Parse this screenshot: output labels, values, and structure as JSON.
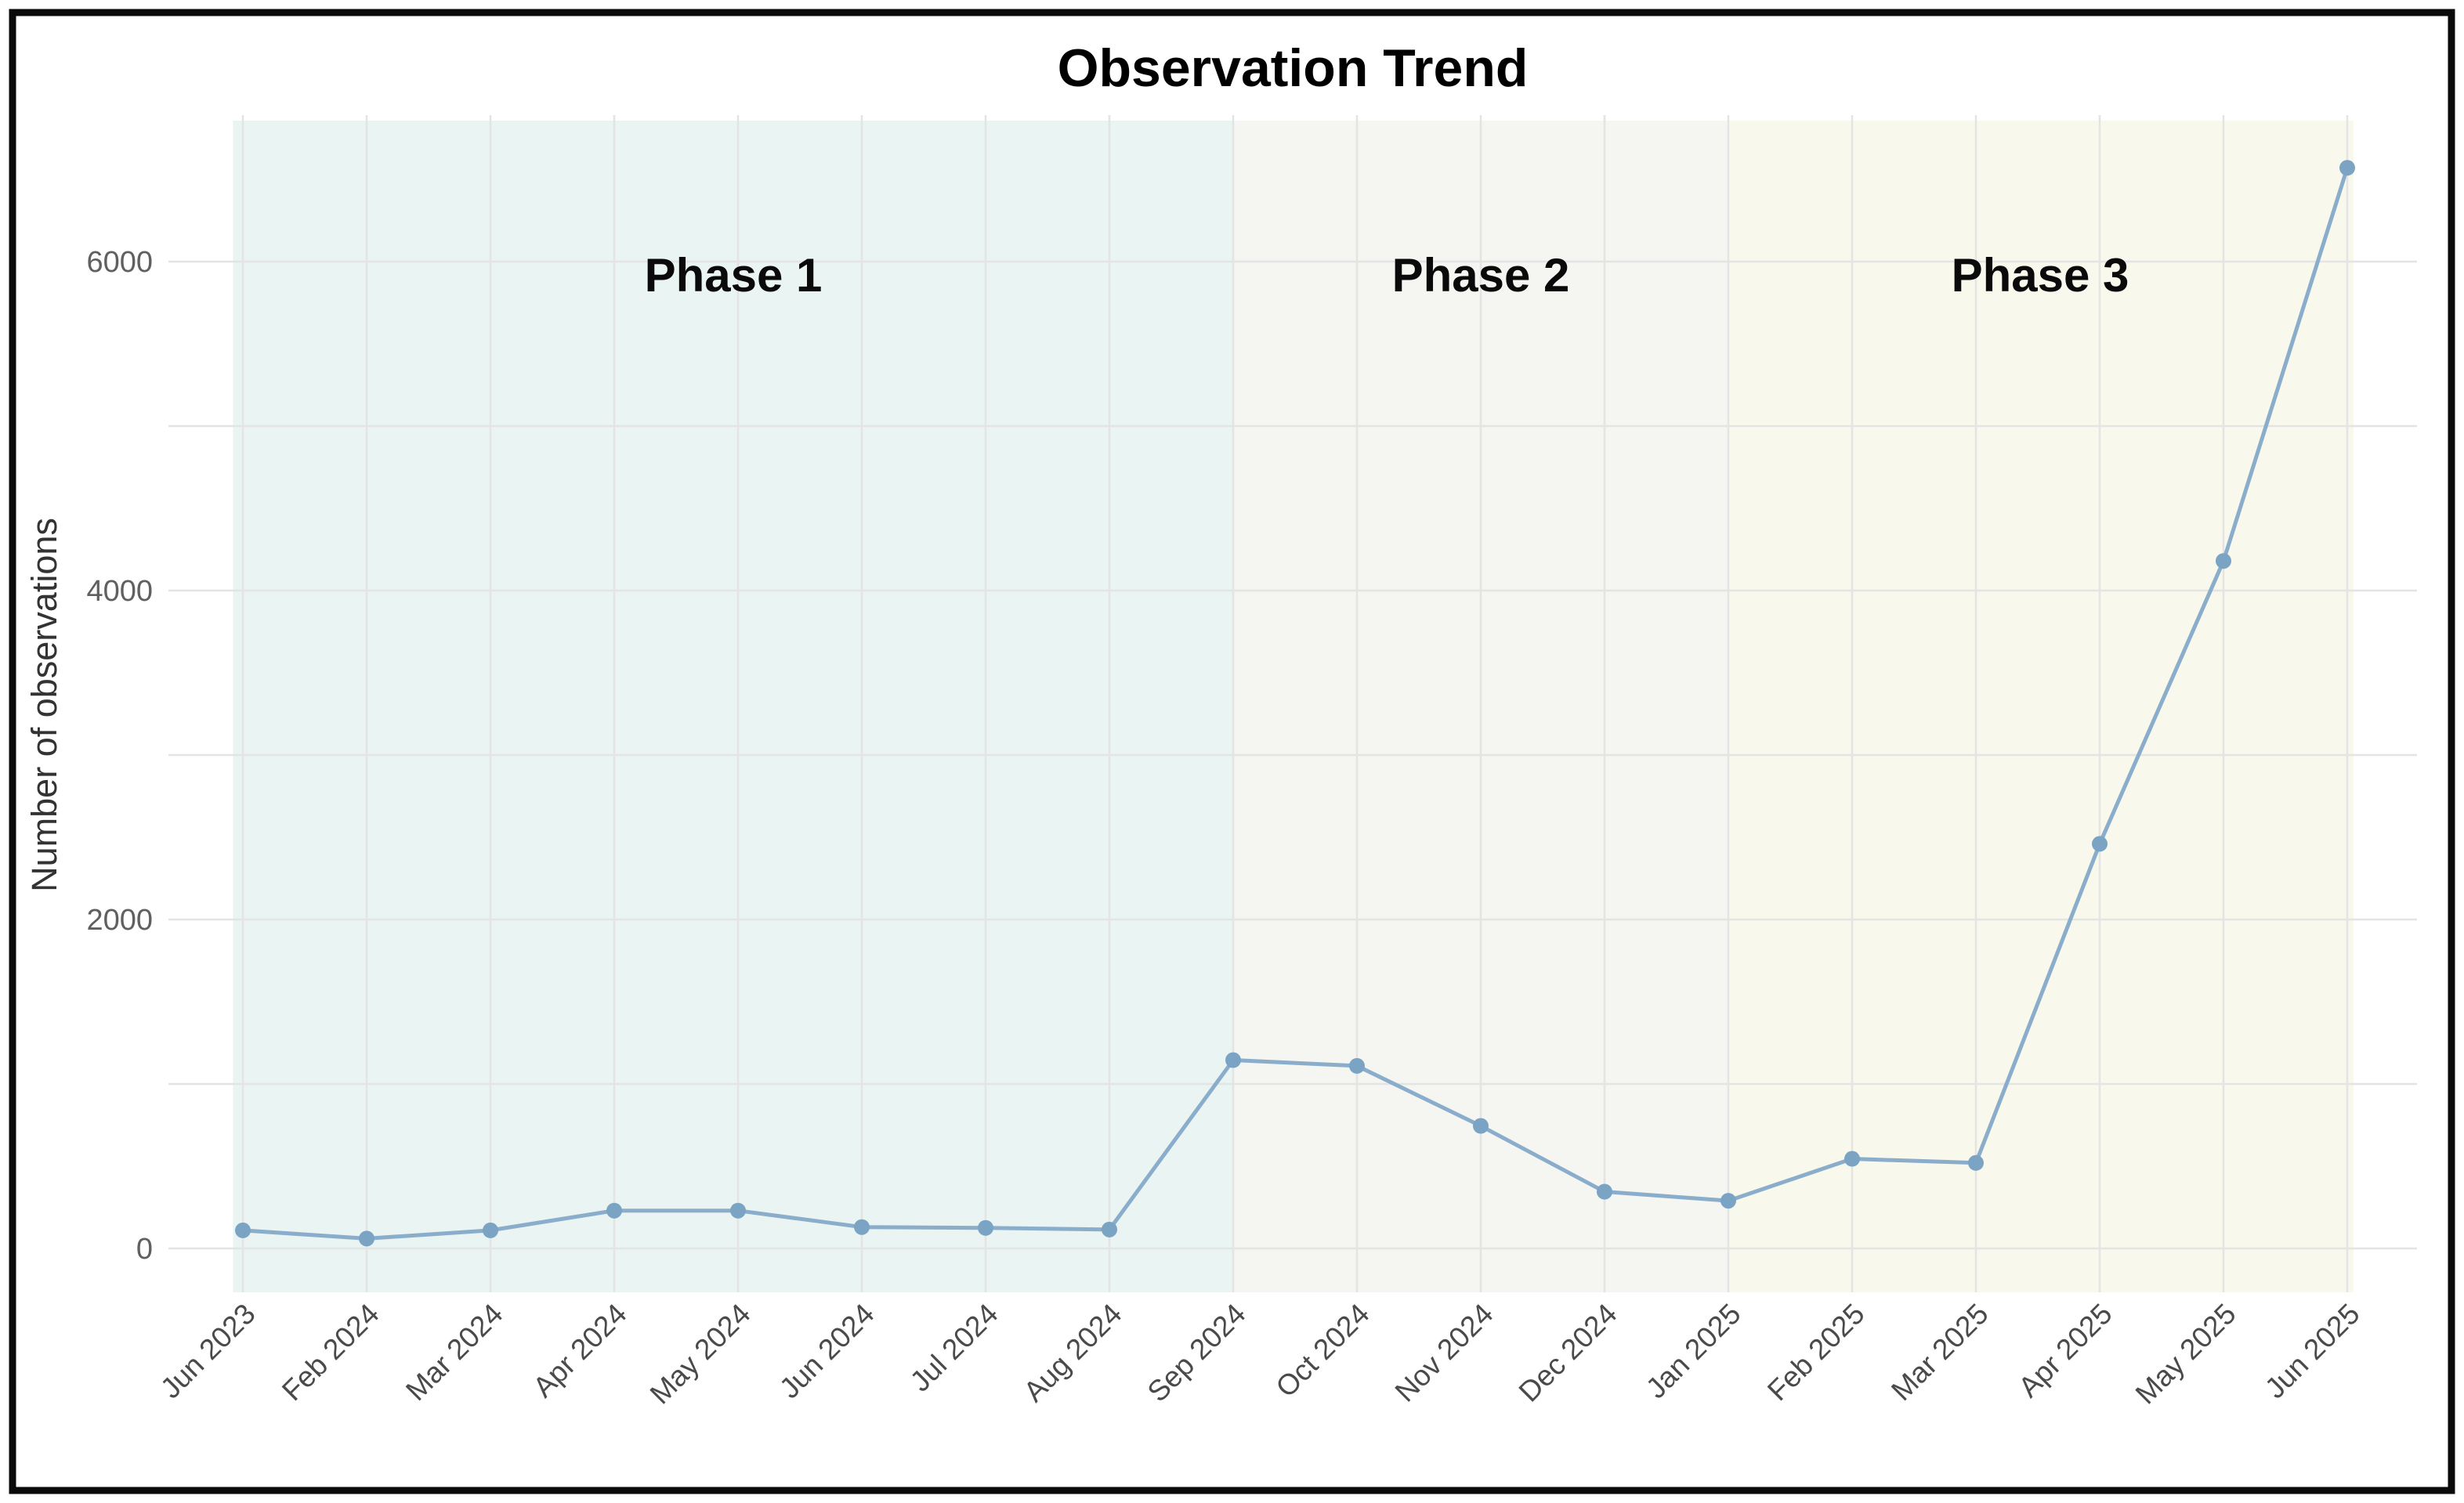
{
  "window": {
    "background": "#ffffff",
    "frame_color": "#0a0a0a"
  },
  "chart_data": {
    "type": "line",
    "title": "Observation Trend",
    "xlabel": "",
    "ylabel": "Number of observations",
    "legend_position": "none",
    "grid": true,
    "categories": [
      "Jun 2023",
      "Feb 2024",
      "Mar 2024",
      "Apr 2024",
      "May 2024",
      "Jun 2024",
      "Jul 2024",
      "Aug 2024",
      "Sep 2024",
      "Oct 2024",
      "Nov 2024",
      "Dec 2024",
      "Jan 2025",
      "Feb 2025",
      "Mar 2025",
      "Apr 2025",
      "May 2025",
      "Jun 2025"
    ],
    "values": [
      110,
      60,
      110,
      230,
      230,
      130,
      125,
      115,
      1145,
      1110,
      745,
      345,
      290,
      545,
      520,
      2460,
      4180,
      6570
    ],
    "yticks": [
      0,
      2000,
      4000,
      6000
    ],
    "ygrid": [
      0,
      1000,
      2000,
      3000,
      4000,
      5000,
      6000
    ],
    "ylim": [
      0,
      6900
    ],
    "line_color": "#8aadcb",
    "marker_color": "#7aa3c4",
    "phases": [
      {
        "label": "Phase 1",
        "start": "Jun 2023",
        "end": "Sep 2024",
        "start_idx": -0.08,
        "end_idx": 8,
        "color": "#eaf4f2"
      },
      {
        "label": "Phase 2",
        "start": "Sep 2024",
        "end": "Jan 2025",
        "start_idx": 8,
        "end_idx": 12,
        "color": "#f5f5f2"
      },
      {
        "label": "Phase 3",
        "start": "Jan 2025",
        "end": "Jun 2025",
        "start_idx": 12,
        "end_idx": 17.05,
        "color": "#f8f8ec"
      }
    ]
  }
}
